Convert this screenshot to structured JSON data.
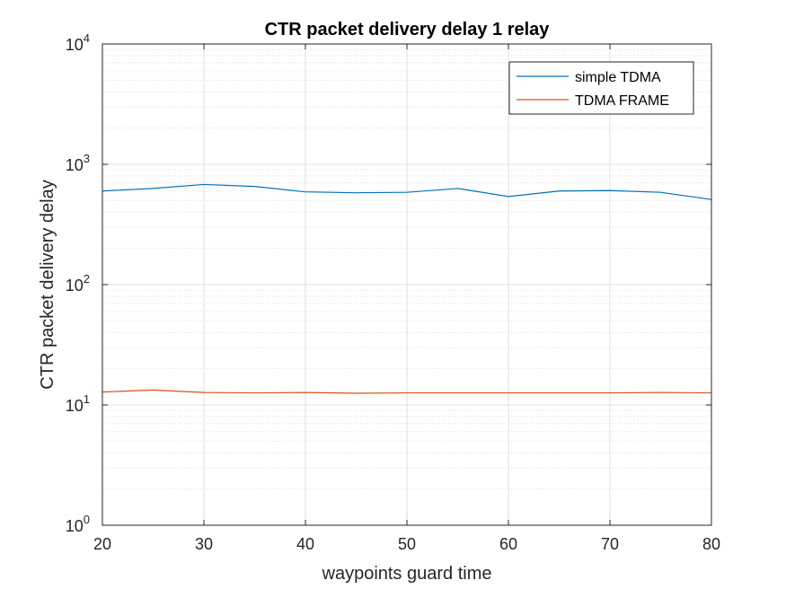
{
  "chart_data": {
    "type": "line",
    "title": "CTR packet delivery delay 1 relay",
    "xlabel": "waypoints guard time",
    "ylabel": "CTR packet delivery delay",
    "xlim": [
      20,
      80
    ],
    "ylim": [
      1,
      10000
    ],
    "yscale": "log",
    "grid": true,
    "minor_grid": true,
    "legend_position": "top-right",
    "xticks": [
      20,
      30,
      40,
      50,
      60,
      70,
      80
    ],
    "yticks": [
      {
        "base": "10",
        "exp": "0"
      },
      {
        "base": "10",
        "exp": "1"
      },
      {
        "base": "10",
        "exp": "2"
      },
      {
        "base": "10",
        "exp": "3"
      },
      {
        "base": "10",
        "exp": "4"
      }
    ],
    "x": [
      20,
      25,
      30,
      35,
      40,
      45,
      50,
      55,
      60,
      65,
      70,
      75,
      80
    ],
    "series": [
      {
        "name": "simple TDMA",
        "color": "#0072BD",
        "values": [
          600,
          630,
          680,
          655,
          590,
          580,
          585,
          630,
          540,
          600,
          605,
          585,
          510
        ]
      },
      {
        "name": "TDMA FRAME",
        "color": "#D95319",
        "values": [
          12.8,
          13.3,
          12.7,
          12.6,
          12.7,
          12.5,
          12.6,
          12.6,
          12.6,
          12.6,
          12.6,
          12.7,
          12.6
        ]
      }
    ]
  }
}
